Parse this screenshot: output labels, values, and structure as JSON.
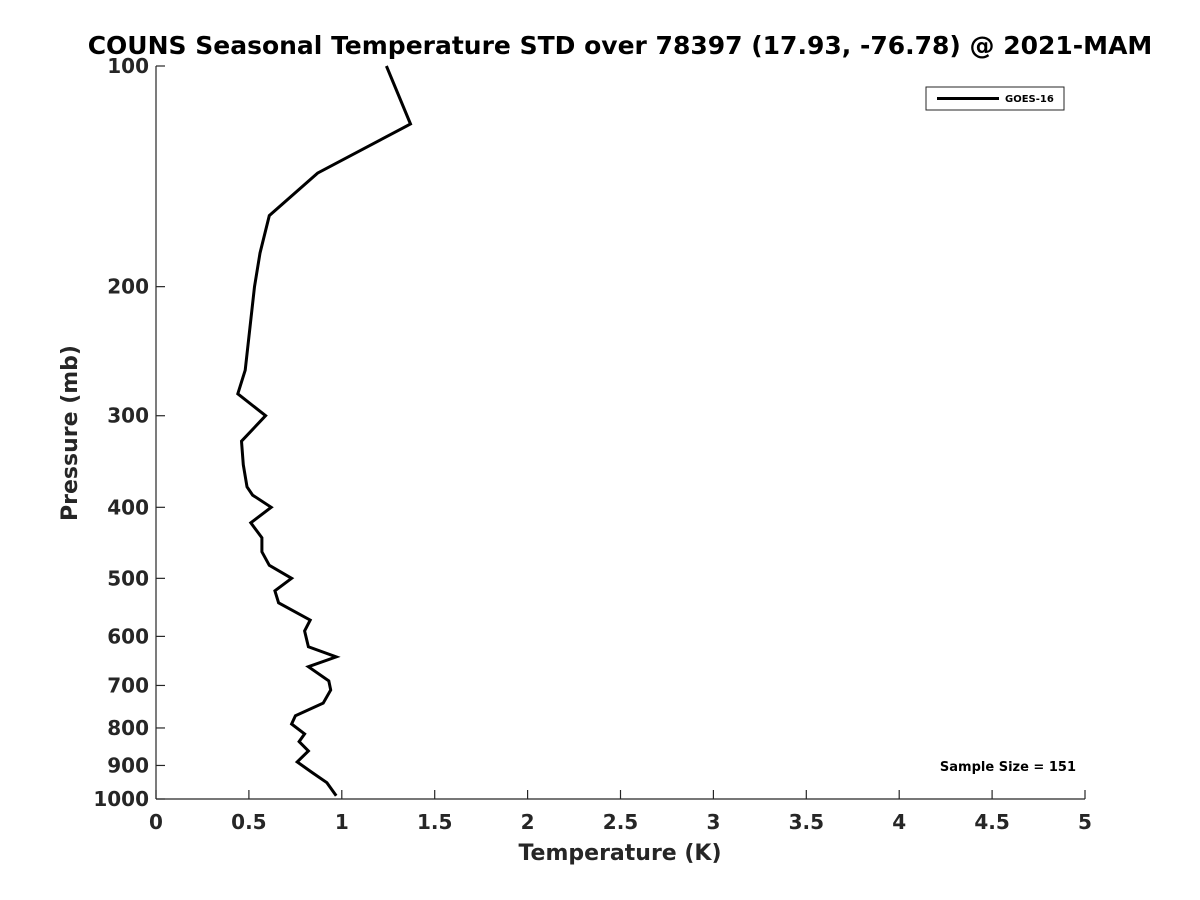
{
  "chart_data": {
    "type": "line",
    "title": "COUNS Seasonal Temperature STD over 78397 (17.93, -76.78) @ 2021-MAM",
    "xlabel": "Temperature (K)",
    "ylabel": "Pressure (mb)",
    "xlim": [
      0,
      5
    ],
    "ylim": [
      100,
      1000
    ],
    "y_scale": "log",
    "y_reversed": true,
    "x_ticks": [
      0,
      0.5,
      1,
      1.5,
      2,
      2.5,
      3,
      3.5,
      4,
      4.5,
      5
    ],
    "x_tick_labels": [
      "0",
      "0.5",
      "1",
      "1.5",
      "2",
      "2.5",
      "3",
      "3.5",
      "4",
      "4.5",
      "5"
    ],
    "y_ticks": [
      100,
      200,
      300,
      400,
      500,
      600,
      700,
      800,
      900,
      1000
    ],
    "y_tick_labels": [
      "100",
      "200",
      "300",
      "400",
      "500",
      "600",
      "700",
      "800",
      "900",
      "1000"
    ],
    "grid": false,
    "legend_position": "top-right",
    "series": [
      {
        "name": "GOES-16",
        "color": "#000000",
        "x": [
          1.24,
          1.37,
          0.87,
          0.61,
          0.56,
          0.53,
          0.48,
          0.44,
          0.59,
          0.46,
          0.47,
          0.49,
          0.52,
          0.62,
          0.51,
          0.57,
          0.57,
          0.61,
          0.73,
          0.64,
          0.66,
          0.83,
          0.8,
          0.82,
          0.97,
          0.82,
          0.93,
          0.94,
          0.9,
          0.75,
          0.73,
          0.8,
          0.77,
          0.82,
          0.76,
          0.84,
          0.92,
          0.97
        ],
        "y": [
          100,
          120,
          140,
          160,
          180,
          200,
          260,
          280,
          300,
          325,
          350,
          375,
          385,
          400,
          420,
          440,
          460,
          480,
          500,
          520,
          540,
          570,
          590,
          620,
          640,
          660,
          690,
          710,
          740,
          770,
          790,
          815,
          835,
          860,
          890,
          920,
          950,
          990
        ]
      }
    ],
    "annotation": "Sample Size = 151"
  }
}
